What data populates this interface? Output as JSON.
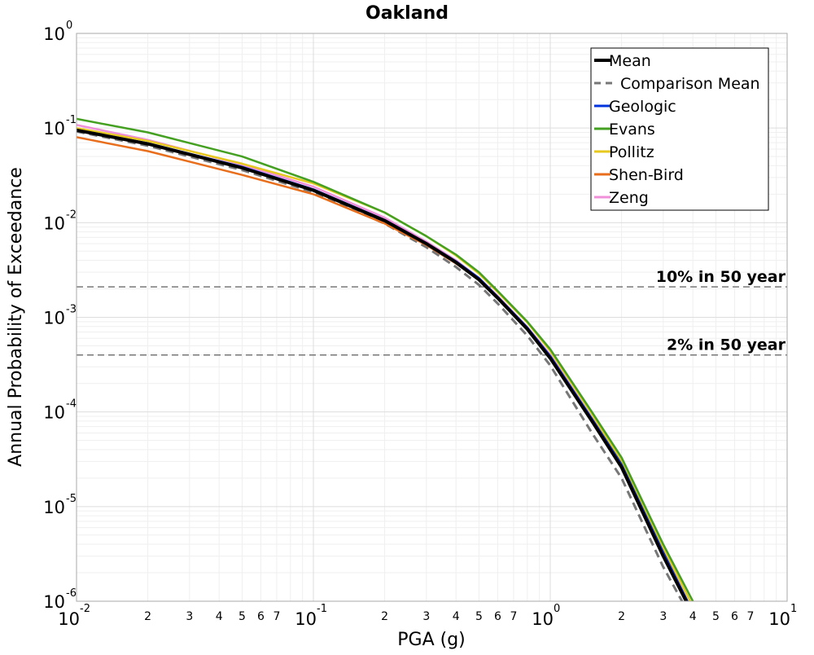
{
  "chart_data": {
    "type": "line",
    "title": "Oakland",
    "xlabel": "PGA (g)",
    "ylabel": "Annual Probability of Exceedance",
    "xscale": "log",
    "yscale": "log",
    "xlim": [
      0.01,
      10
    ],
    "ylim": [
      1e-06,
      1
    ],
    "grid": true,
    "legend_position": "top-right",
    "x_major_ticks": [
      {
        "base": "10",
        "exp": "-2",
        "value": 0.01
      },
      {
        "base": "10",
        "exp": "-1",
        "value": 0.1
      },
      {
        "base": "10",
        "exp": "0",
        "value": 1
      },
      {
        "base": "10",
        "exp": "1",
        "value": 10
      }
    ],
    "x_minor_ticks": [
      {
        "label": "2",
        "value": 0.02
      },
      {
        "label": "3",
        "value": 0.03
      },
      {
        "label": "4",
        "value": 0.04
      },
      {
        "label": "5",
        "value": 0.05
      },
      {
        "label": "6",
        "value": 0.06
      },
      {
        "label": "7",
        "value": 0.07
      },
      {
        "label": "2",
        "value": 0.2
      },
      {
        "label": "3",
        "value": 0.3
      },
      {
        "label": "4",
        "value": 0.4
      },
      {
        "label": "5",
        "value": 0.5
      },
      {
        "label": "6",
        "value": 0.6
      },
      {
        "label": "7",
        "value": 0.7
      },
      {
        "label": "2",
        "value": 2
      },
      {
        "label": "3",
        "value": 3
      },
      {
        "label": "4",
        "value": 4
      },
      {
        "label": "5",
        "value": 5
      },
      {
        "label": "6",
        "value": 6
      },
      {
        "label": "7",
        "value": 7
      }
    ],
    "y_major_ticks": [
      {
        "base": "10",
        "exp": "0",
        "value": 1
      },
      {
        "base": "10",
        "exp": "-1",
        "value": 0.1
      },
      {
        "base": "10",
        "exp": "-2",
        "value": 0.01
      },
      {
        "base": "10",
        "exp": "-3",
        "value": 0.001
      },
      {
        "base": "10",
        "exp": "-4",
        "value": 0.0001
      },
      {
        "base": "10",
        "exp": "-5",
        "value": 1e-05
      },
      {
        "base": "10",
        "exp": "-6",
        "value": 1e-06
      }
    ],
    "reference_lines": [
      {
        "label": "10% in 50 year",
        "y": 0.0021
      },
      {
        "label": "2% in 50 year",
        "y": 0.0004
      }
    ],
    "series": [
      {
        "name": "Mean",
        "color": "#000000",
        "style": "solid",
        "width": 4,
        "points": [
          [
            0.01,
            0.095
          ],
          [
            0.02,
            0.068
          ],
          [
            0.05,
            0.038
          ],
          [
            0.1,
            0.022
          ],
          [
            0.2,
            0.0105
          ],
          [
            0.3,
            0.006
          ],
          [
            0.4,
            0.0038
          ],
          [
            0.5,
            0.0025
          ],
          [
            0.6,
            0.0016
          ],
          [
            0.8,
            0.00075
          ],
          [
            1,
            0.00037
          ],
          [
            1.5,
            8e-05
          ],
          [
            2,
            2.6e-05
          ],
          [
            3,
            3e-06
          ],
          [
            3.75,
            1e-06
          ]
        ]
      },
      {
        "name": "Comparison Mean",
        "color": "#777777",
        "style": "dashed",
        "width": 3,
        "points": [
          [
            0.01,
            0.092
          ],
          [
            0.02,
            0.065
          ],
          [
            0.05,
            0.036
          ],
          [
            0.1,
            0.021
          ],
          [
            0.2,
            0.0098
          ],
          [
            0.3,
            0.0055
          ],
          [
            0.4,
            0.0034
          ],
          [
            0.5,
            0.0022
          ],
          [
            0.6,
            0.0014
          ],
          [
            0.8,
            0.00064
          ],
          [
            1,
            0.00031
          ],
          [
            1.5,
            6e-05
          ],
          [
            2,
            2e-05
          ],
          [
            3,
            2.3e-06
          ],
          [
            3.6,
            1e-06
          ]
        ]
      },
      {
        "name": "Geologic",
        "color": "#0033dd",
        "style": "solid",
        "width": 2.5,
        "points": [
          [
            0.01,
            0.096
          ],
          [
            0.02,
            0.069
          ],
          [
            0.05,
            0.039
          ],
          [
            0.1,
            0.0225
          ],
          [
            0.2,
            0.0107
          ],
          [
            0.3,
            0.0061
          ],
          [
            0.4,
            0.0039
          ],
          [
            0.5,
            0.0026
          ],
          [
            0.6,
            0.00165
          ],
          [
            0.8,
            0.00078
          ],
          [
            1,
            0.00039
          ],
          [
            1.5,
            8.5e-05
          ],
          [
            2,
            2.8e-05
          ],
          [
            3,
            3.3e-06
          ],
          [
            3.8,
            1e-06
          ]
        ]
      },
      {
        "name": "Evans",
        "color": "#44a020",
        "style": "solid",
        "width": 2.5,
        "points": [
          [
            0.01,
            0.125
          ],
          [
            0.02,
            0.09
          ],
          [
            0.05,
            0.05
          ],
          [
            0.1,
            0.027
          ],
          [
            0.2,
            0.0128
          ],
          [
            0.3,
            0.0072
          ],
          [
            0.4,
            0.0046
          ],
          [
            0.5,
            0.003
          ],
          [
            0.6,
            0.0019
          ],
          [
            0.8,
            0.0009
          ],
          [
            1,
            0.00046
          ],
          [
            1.5,
            0.0001
          ],
          [
            2,
            3.3e-05
          ],
          [
            3,
            4e-06
          ],
          [
            4,
            1e-06
          ]
        ]
      },
      {
        "name": "Pollitz",
        "color": "#e6c81e",
        "style": "solid",
        "width": 2.5,
        "points": [
          [
            0.01,
            0.1
          ],
          [
            0.02,
            0.073
          ],
          [
            0.05,
            0.042
          ],
          [
            0.1,
            0.026
          ],
          [
            0.2,
            0.0128
          ],
          [
            0.3,
            0.0072
          ],
          [
            0.4,
            0.0045
          ],
          [
            0.5,
            0.0029
          ],
          [
            0.6,
            0.00185
          ],
          [
            0.8,
            0.00088
          ],
          [
            1,
            0.00044
          ],
          [
            1.5,
            9.5e-05
          ],
          [
            2,
            3e-05
          ],
          [
            3,
            3.7e-06
          ],
          [
            3.9,
            1e-06
          ]
        ]
      },
      {
        "name": "Shen-Bird",
        "color": "#e86e1c",
        "style": "solid",
        "width": 2.5,
        "points": [
          [
            0.01,
            0.08
          ],
          [
            0.02,
            0.057
          ],
          [
            0.05,
            0.032
          ],
          [
            0.1,
            0.02
          ],
          [
            0.2,
            0.0098
          ],
          [
            0.3,
            0.0058
          ],
          [
            0.4,
            0.0037
          ],
          [
            0.5,
            0.0025
          ],
          [
            0.6,
            0.0016
          ],
          [
            0.8,
            0.00076
          ],
          [
            1,
            0.00038
          ],
          [
            1.5,
            8.2e-05
          ],
          [
            2,
            2.7e-05
          ],
          [
            3,
            3.2e-06
          ],
          [
            3.8,
            1e-06
          ]
        ]
      },
      {
        "name": "Zeng",
        "color": "#f090d8",
        "style": "solid",
        "width": 2.5,
        "points": [
          [
            0.01,
            0.108
          ],
          [
            0.02,
            0.075
          ],
          [
            0.05,
            0.041
          ],
          [
            0.1,
            0.024
          ],
          [
            0.2,
            0.0113
          ],
          [
            0.3,
            0.0063
          ],
          [
            0.4,
            0.004
          ],
          [
            0.5,
            0.0026
          ],
          [
            0.6,
            0.00168
          ],
          [
            0.8,
            0.00079
          ],
          [
            1,
            0.0004
          ],
          [
            1.5,
            8.6e-05
          ],
          [
            2,
            2.8e-05
          ],
          [
            3,
            3.4e-06
          ],
          [
            3.8,
            1e-06
          ]
        ]
      }
    ]
  }
}
